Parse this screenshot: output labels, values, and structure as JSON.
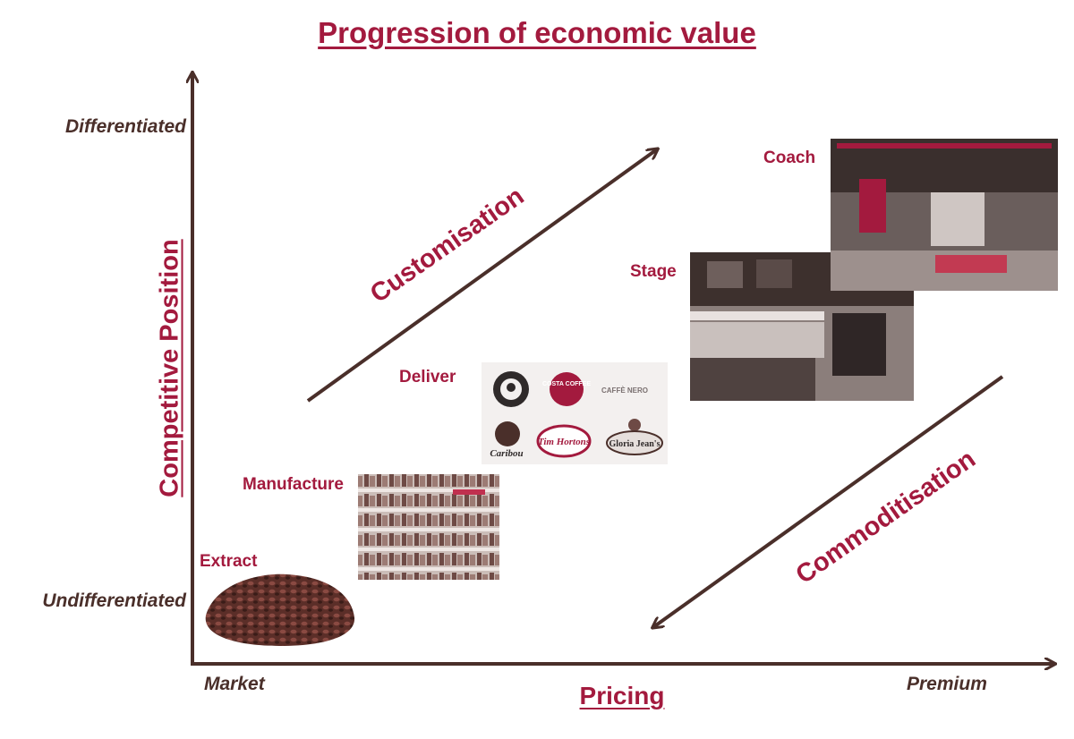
{
  "title": "Progression of economic value",
  "axes": {
    "y_title": "Competitive Position",
    "y_top": "Differentiated",
    "y_bottom": "Undifferentiated",
    "x_title": "Pricing",
    "x_left": "Market",
    "x_right": "Premium"
  },
  "stages": {
    "extract": "Extract",
    "manufacture": "Manufacture",
    "deliver": "Deliver",
    "stage": "Stage",
    "coach": "Coach"
  },
  "trends": {
    "up": "Customisation",
    "down": "Commoditisation"
  },
  "brands": {
    "costa": "COSTA COFFEE",
    "caffe_nero": "CAFFÈ NERO",
    "caribou": "Caribou",
    "tim_hortons": "Tim Hortons",
    "gloria_jeans": "Gloria Jean's"
  },
  "colors": {
    "accent": "#a31a3e",
    "axis": "#4a2f2a"
  }
}
